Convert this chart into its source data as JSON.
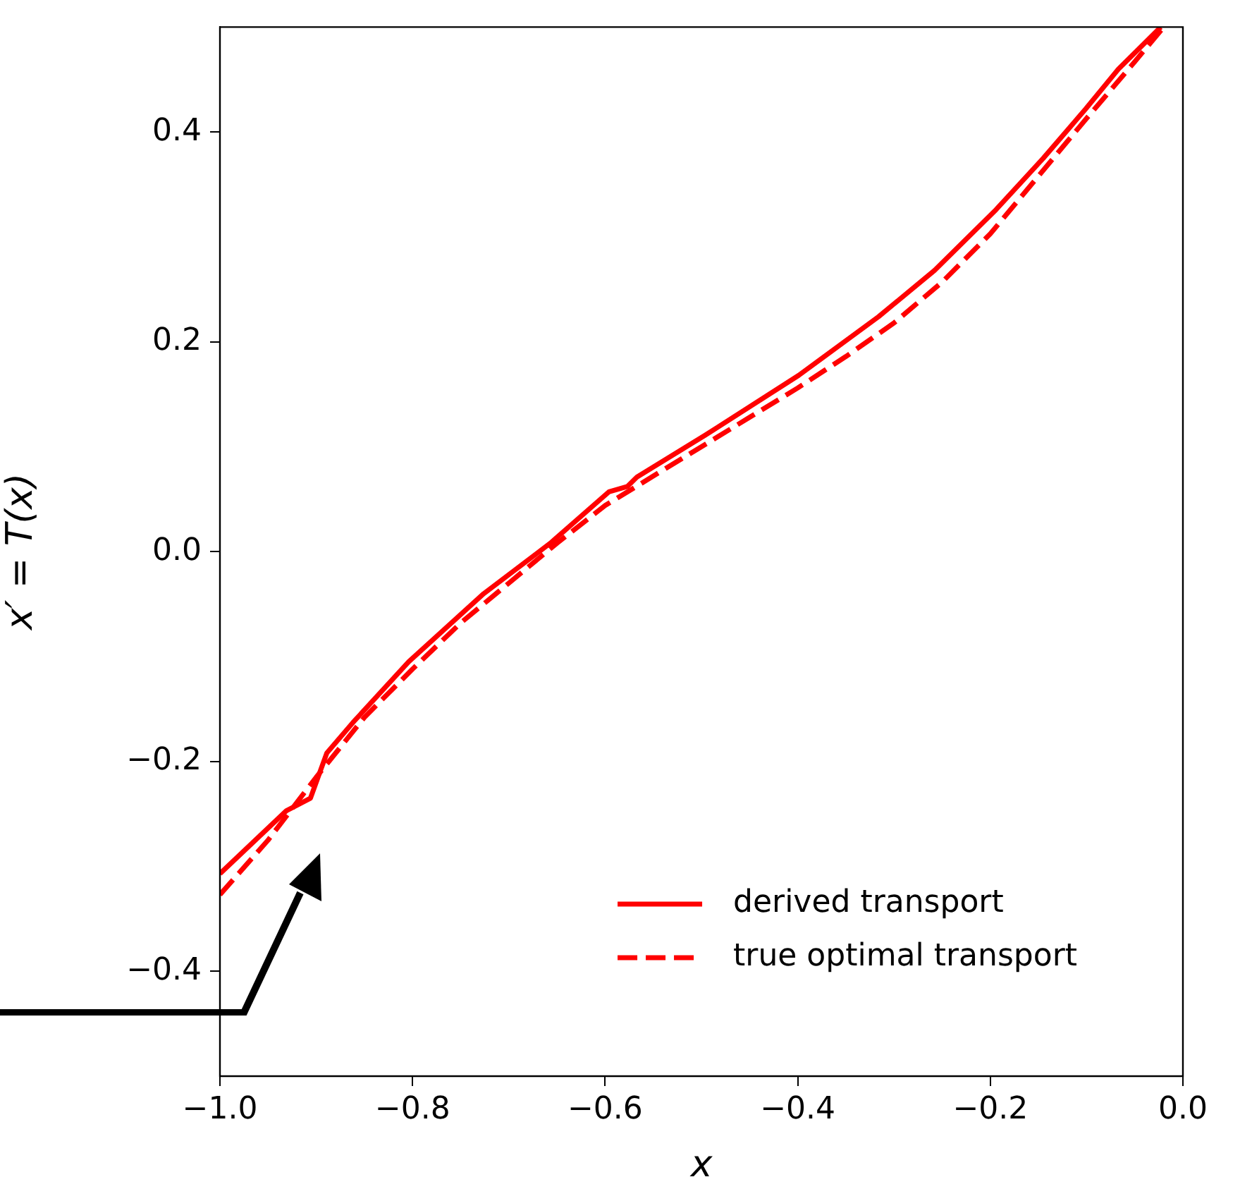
{
  "chart_data": {
    "type": "line",
    "xlabel": "x",
    "ylabel": "x′ = T(x)",
    "xlim": [
      -1.0,
      0.0
    ],
    "ylim": [
      -0.5,
      0.5
    ],
    "xticks": [
      {
        "value": -1.0,
        "label": "−1.0"
      },
      {
        "value": -0.8,
        "label": "−0.8"
      },
      {
        "value": -0.6,
        "label": "−0.6"
      },
      {
        "value": -0.4,
        "label": "−0.4"
      },
      {
        "value": -0.2,
        "label": "−0.2"
      },
      {
        "value": 0.0,
        "label": "0.0"
      }
    ],
    "yticks": [
      {
        "value": -0.4,
        "label": "−0.4"
      },
      {
        "value": -0.2,
        "label": "−0.2"
      },
      {
        "value": 0.0,
        "label": "0.0"
      },
      {
        "value": 0.2,
        "label": "0.2"
      },
      {
        "value": 0.4,
        "label": "0.4"
      }
    ],
    "grid": false,
    "legend": "bottom right",
    "marker": "none",
    "series": [
      {
        "name": "derived transport",
        "color": "#ff0000",
        "line_style": "solid",
        "x": [
          -1.0,
          -0.931,
          -0.906,
          -0.889,
          -0.862,
          -0.804,
          -0.726,
          -0.657,
          -0.596,
          -0.577,
          -0.567,
          -0.496,
          -0.399,
          -0.316,
          -0.258,
          -0.194,
          -0.145,
          -0.101,
          -0.067,
          -0.023
        ],
        "values": [
          -0.307,
          -0.247,
          -0.235,
          -0.192,
          -0.163,
          -0.105,
          -0.04,
          0.008,
          0.057,
          0.062,
          0.071,
          0.111,
          0.168,
          0.224,
          0.268,
          0.326,
          0.375,
          0.422,
          0.46,
          0.5
        ]
      },
      {
        "name": "true optimal transport",
        "color": "#ff0000",
        "line_style": "dashed",
        "x": [
          -1.0,
          -0.95,
          -0.9,
          -0.85,
          -0.8,
          -0.75,
          -0.7,
          -0.65,
          -0.6,
          -0.55,
          -0.5,
          -0.45,
          -0.4,
          -0.35,
          -0.3,
          -0.25,
          -0.2,
          -0.15,
          -0.1,
          -0.05,
          -0.02
        ],
        "values": [
          -0.327,
          -0.275,
          -0.215,
          -0.158,
          -0.112,
          -0.068,
          -0.03,
          0.008,
          0.044,
          0.072,
          0.1,
          0.128,
          0.156,
          0.186,
          0.218,
          0.257,
          0.303,
          0.358,
          0.413,
          0.467,
          0.5
        ]
      }
    ]
  }
}
